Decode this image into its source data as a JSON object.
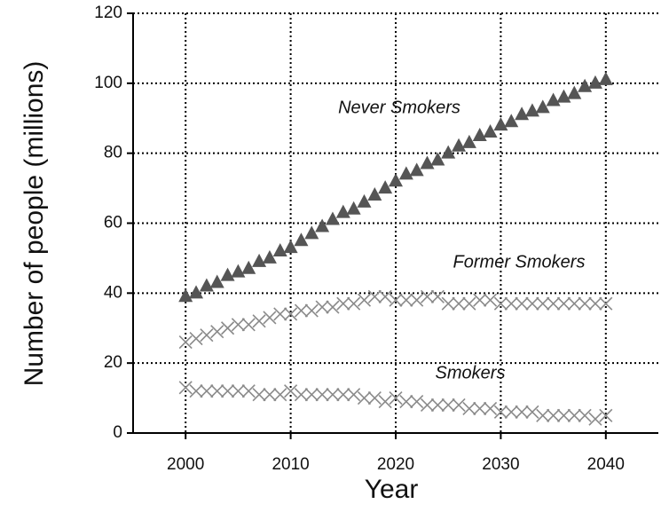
{
  "chart_data": {
    "type": "scatter",
    "xlabel": "Year",
    "ylabel": "Number of people (millions)",
    "x": [
      2000,
      2001,
      2002,
      2003,
      2004,
      2005,
      2006,
      2007,
      2008,
      2009,
      2010,
      2011,
      2012,
      2013,
      2014,
      2015,
      2016,
      2017,
      2018,
      2019,
      2020,
      2021,
      2022,
      2023,
      2024,
      2025,
      2026,
      2027,
      2028,
      2029,
      2030,
      2031,
      2032,
      2033,
      2034,
      2035,
      2036,
      2037,
      2038,
      2039,
      2040
    ],
    "series": [
      {
        "name": "Never Smokers",
        "color": "#555555",
        "marker": "triangle",
        "values": [
          39,
          40,
          42,
          43,
          45,
          46,
          47,
          49,
          50,
          52,
          53,
          55,
          57,
          59,
          61,
          63,
          64,
          66,
          68,
          70,
          72,
          74,
          75,
          77,
          78,
          80,
          82,
          83,
          85,
          86,
          88,
          89,
          91,
          92,
          93,
          95,
          96,
          97,
          99,
          100,
          101
        ]
      },
      {
        "name": "Former Smokers",
        "color": "#8a8a8a",
        "marker": "x",
        "values": [
          26,
          27,
          28,
          29,
          30,
          31,
          31,
          32,
          33,
          34,
          34,
          35,
          35,
          36,
          36,
          37,
          37,
          38,
          39,
          39,
          38,
          38,
          38,
          39,
          39,
          37,
          37,
          37,
          38,
          38,
          37,
          37,
          37,
          37,
          37,
          37,
          37,
          37,
          37,
          37,
          37
        ]
      },
      {
        "name": "Smokers",
        "color": "#8a8a8a",
        "marker": "x",
        "values": [
          13,
          12,
          12,
          12,
          12,
          12,
          12,
          11,
          11,
          11,
          12,
          11,
          11,
          11,
          11,
          11,
          11,
          10,
          10,
          9,
          10,
          9,
          9,
          8,
          8,
          8,
          8,
          7,
          7,
          7,
          6,
          6,
          6,
          6,
          5,
          5,
          5,
          5,
          5,
          4,
          5
        ]
      }
    ],
    "xlim": [
      1995,
      2045
    ],
    "xticks": [
      2000,
      2010,
      2020,
      2030,
      2040
    ],
    "ylim": [
      0,
      120
    ],
    "yticks": [
      0,
      20,
      40,
      60,
      80,
      100,
      120
    ],
    "grid": true
  }
}
